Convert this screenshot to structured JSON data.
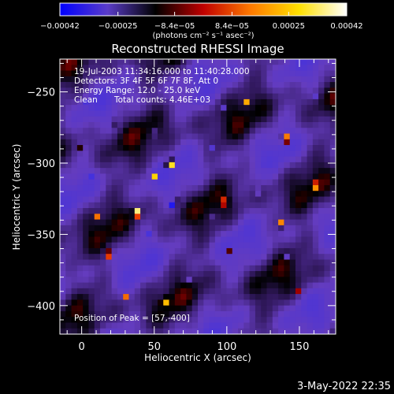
{
  "chart_data": {
    "type": "heatmap",
    "title": "Reconstructed RHESSI Image",
    "xlabel": "Heliocentric X (arcsec)",
    "ylabel": "Heliocentric Y (arcsec)",
    "xlim": [
      -15,
      175
    ],
    "ylim": [
      -420,
      -227
    ],
    "x_ticks": [
      0,
      50,
      100,
      150
    ],
    "y_ticks": [
      -400,
      -350,
      -300,
      -250
    ],
    "x_tick_labels": [
      "0",
      "50",
      "100",
      "150"
    ],
    "y_tick_labels": [
      "−400",
      "−350",
      "−300",
      "−250"
    ],
    "colorbar": {
      "range": [
        -0.00042,
        0.00042
      ],
      "ticks": [
        -0.00042,
        -0.00025,
        -8.4e-05,
        8.4e-05,
        0.00025,
        0.00042
      ],
      "tick_labels": [
        "−0.00042",
        "−0.00025",
        "−8.4e−05",
        "8.4e−05",
        "0.00025",
        "0.00042"
      ],
      "units": "(photons cm⁻² s⁻¹ asec⁻²)",
      "colors": [
        "#0000ff",
        "#5a3cc8",
        "#000000",
        "#c00000",
        "#ff7a00",
        "#ffe000",
        "#ffffff"
      ]
    },
    "annotations": {
      "time_range": "19-Jul-2003 11:34:16.000 to 11:40:28.000",
      "detectors": "Detectors: 3F 4F 5F 6F 7F 8F, Att 0",
      "energy_range": "Energy Range: 12.0 - 25.0 keV",
      "method": "Clean",
      "total_counts": "Total counts: 4.46E+03",
      "peak": "Position of Peak = [57,-400]"
    },
    "peak": [
      57,
      -400
    ],
    "grid_shape": [
      48,
      48
    ]
  },
  "footer": {
    "date": "3-May-2022 22:35"
  }
}
